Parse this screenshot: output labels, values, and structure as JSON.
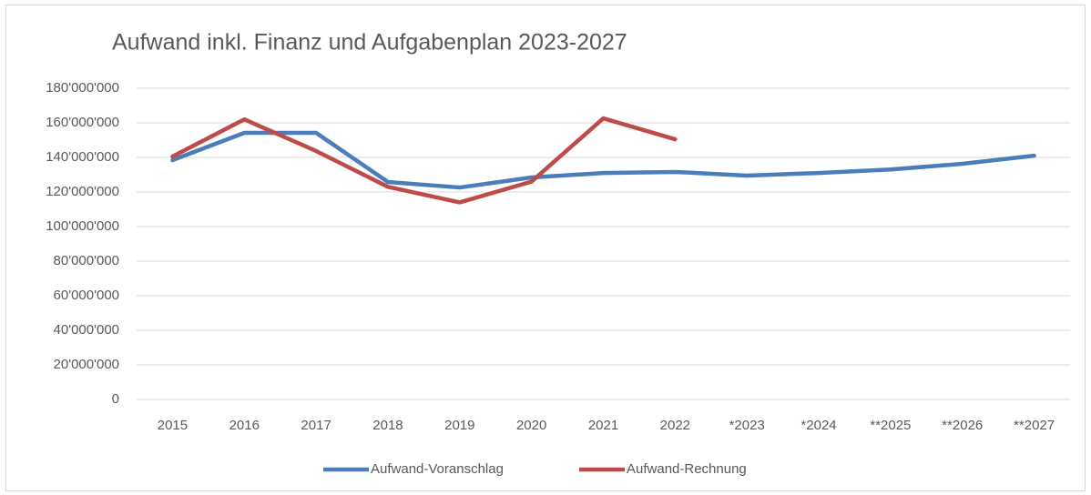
{
  "chart_data": {
    "type": "line",
    "title": "Aufwand inkl. Finanz und Aufgabenplan 2023-2027",
    "categories": [
      "2015",
      "2016",
      "2017",
      "2018",
      "2019",
      "2020",
      "2021",
      "2022",
      "*2023",
      "*2024",
      "**2025",
      "**2026",
      "**2027"
    ],
    "series": [
      {
        "name": "Aufwand-Voranschlag",
        "color": "#4a7ebb",
        "values": [
          138400000,
          154200000,
          154200000,
          125800000,
          122600000,
          128400000,
          131000000,
          131600000,
          129500000,
          131000000,
          133000000,
          136300000,
          141000000
        ]
      },
      {
        "name": "Aufwand-Rechnung",
        "color": "#be4b48",
        "values": [
          140500000,
          162000000,
          143700000,
          123000000,
          114000000,
          126000000,
          162600000,
          150500000,
          null,
          null,
          null,
          null,
          null
        ]
      }
    ],
    "ylim": [
      0,
      180000000
    ],
    "yticks": [
      0,
      {
        "value": 20000000,
        "label": "20'000'000"
      },
      {
        "value": 40000000,
        "label": "40'000'000"
      },
      {
        "value": 60000000,
        "label": "60'000'000"
      },
      {
        "value": 80000000,
        "label": "80'000'000"
      },
      {
        "value": 100000000,
        "label": "100'000'000"
      },
      {
        "value": 120000000,
        "label": "120'000'000"
      },
      {
        "value": 140000000,
        "label": "140'000'000"
      },
      {
        "value": 160000000,
        "label": "160'000'000"
      },
      {
        "value": 180000000,
        "label": "180'000'000"
      }
    ],
    "grid": true,
    "legend": "bottom"
  }
}
